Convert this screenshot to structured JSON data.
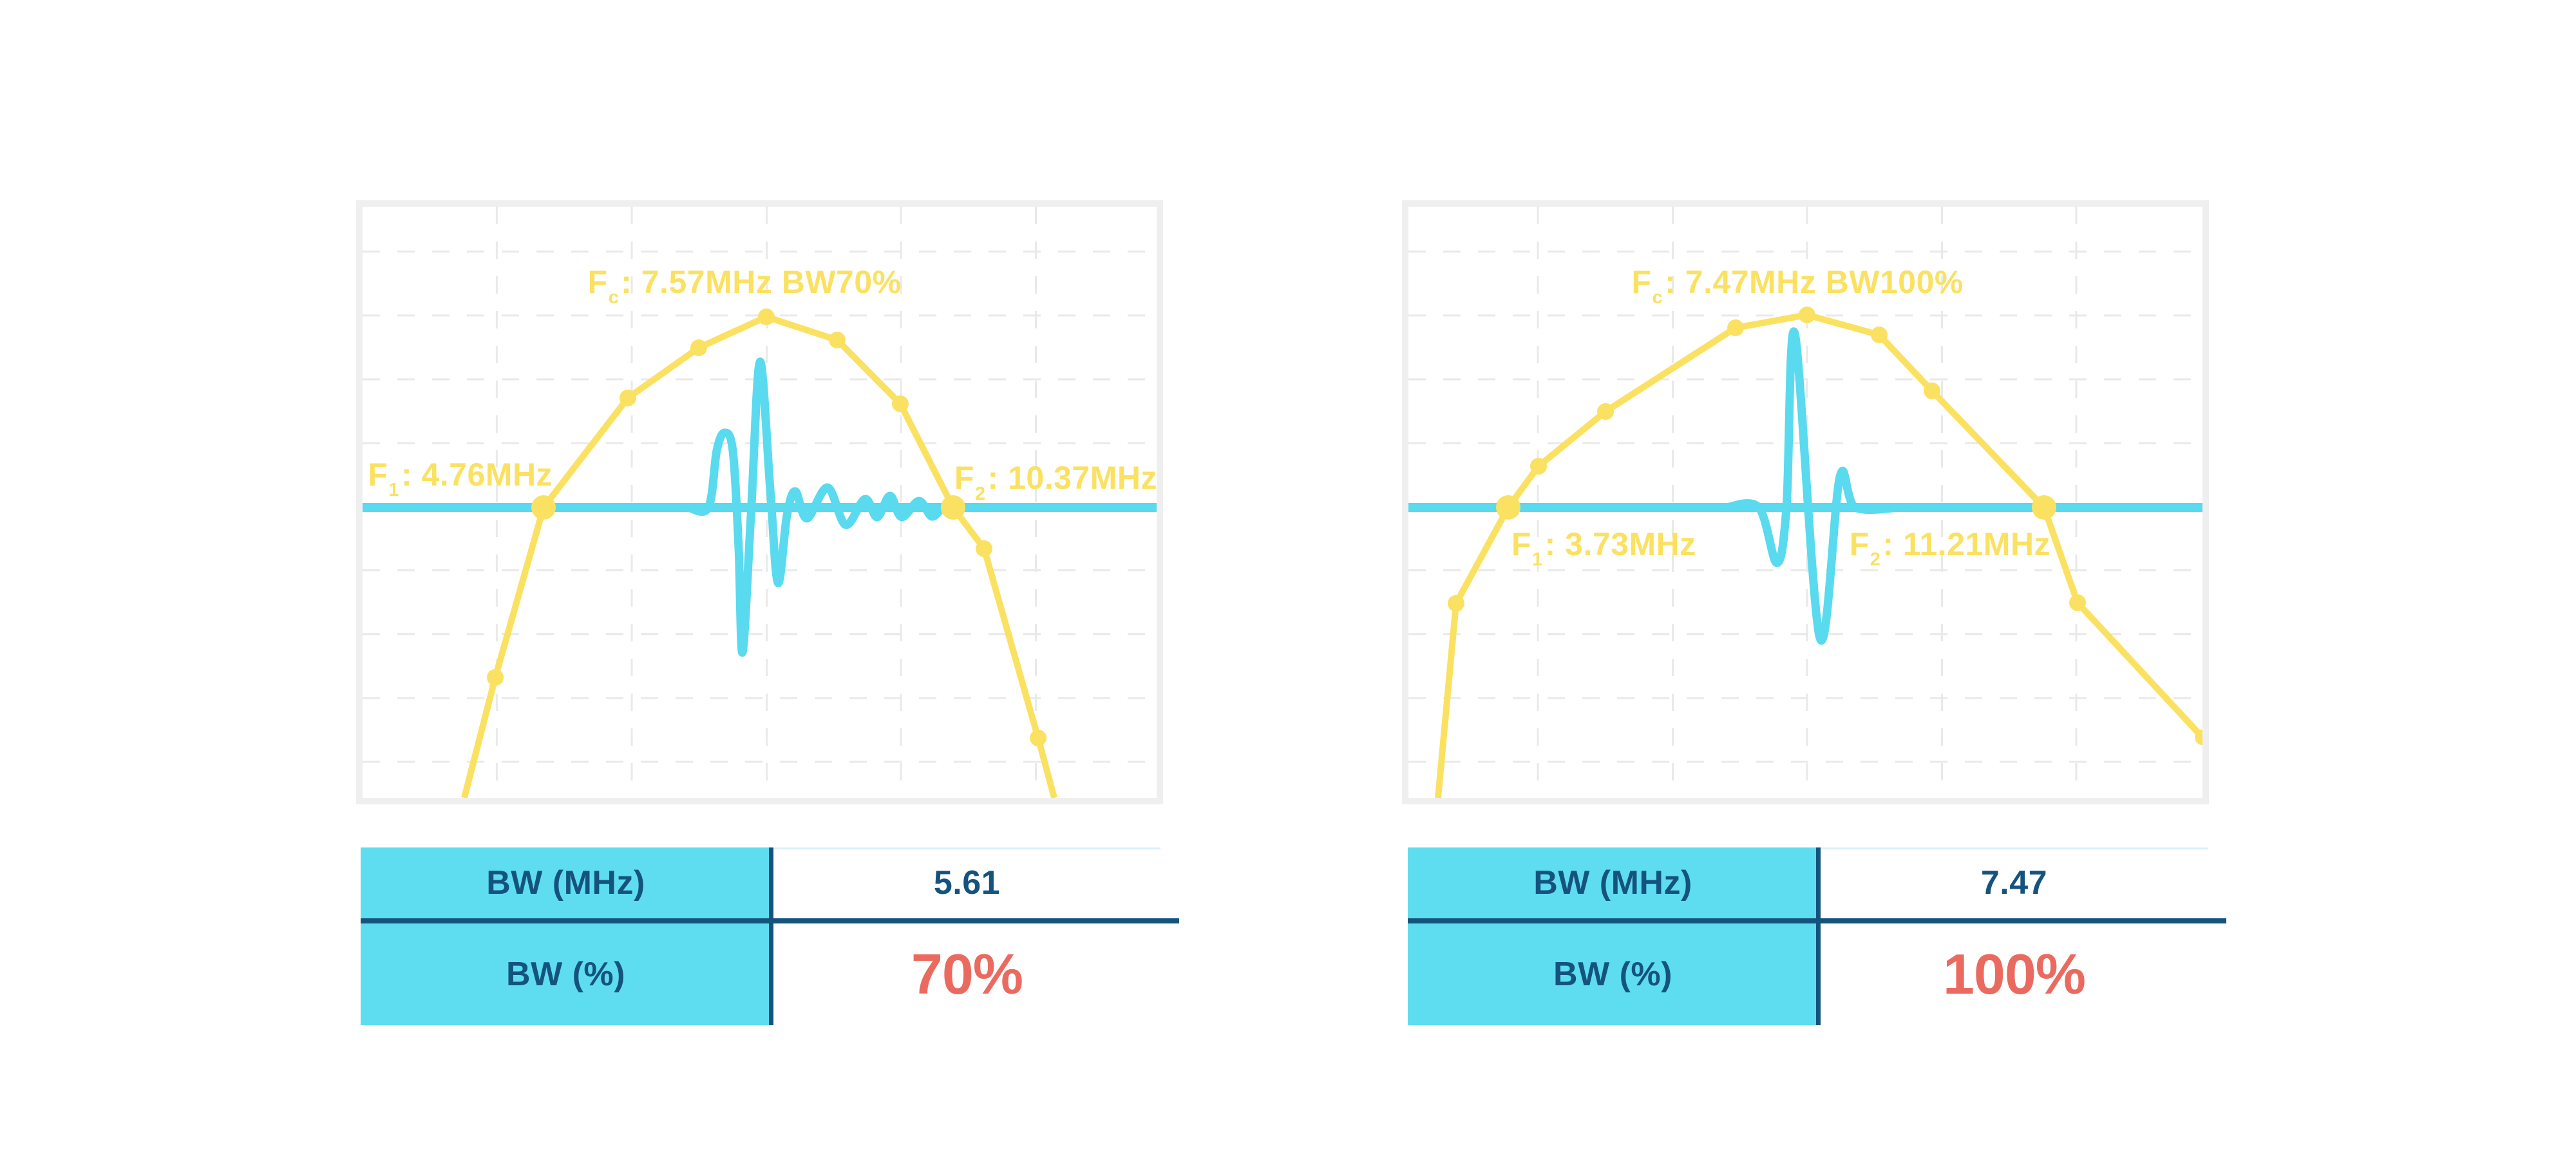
{
  "colors": {
    "yellow": "#FBE161",
    "cyan": "#59DAEE",
    "cyan_fill": "#5FDDF0",
    "navy": "#15537F",
    "red": "#EB6A5F",
    "panel_border": "#EFEFEF",
    "grid": "#E9E9E9",
    "light_border": "#D8F0F7"
  },
  "panels": [
    {
      "title": {
        "pre": "F",
        "sub": "c",
        "post": ": 7.57MHz BW70%"
      },
      "f1": {
        "pre": "F",
        "sub": "1",
        "post": ": 4.76MHz"
      },
      "f2": {
        "pre": "F",
        "sub": "2",
        "post": ": 10.37MHz"
      },
      "table": {
        "rows": [
          {
            "label": "BW (MHz)",
            "value": "5.61"
          },
          {
            "label": "BW (%)",
            "value": "70%"
          }
        ]
      }
    },
    {
      "title": {
        "pre": "F",
        "sub": "c",
        "post": ": 7.47MHz BW100%"
      },
      "f1": {
        "pre": "F",
        "sub": "1",
        "post": ": 3.73MHz"
      },
      "f2": {
        "pre": "F",
        "sub": "2",
        "post": ": 11.21MHz"
      },
      "table": {
        "rows": [
          {
            "label": "BW (MHz)",
            "value": "7.47"
          },
          {
            "label": "BW (%)",
            "value": "100%"
          }
        ]
      }
    }
  ],
  "chart_data": [
    {
      "type": "line",
      "title": "Fc: 7.57MHz BW70%",
      "coords": "normalized to panel, y increases downward",
      "annotations": {
        "fc_mhz": 7.57,
        "bw_percent": 70,
        "f1_mhz": 4.76,
        "f2_mhz": 10.37,
        "bw_mhz": 5.61,
        "title_pos": [
          0.481,
          0.127
        ],
        "f1_pos": [
          0.123,
          0.453
        ],
        "f2_pos": [
          0.873,
          0.459
        ]
      },
      "legend": "none",
      "grid": {
        "x": [
          0.169,
          0.339,
          0.509,
          0.678,
          0.848
        ],
        "y": [
          0.076,
          0.184,
          0.292,
          0.4,
          0.508,
          0.615,
          0.723,
          0.831,
          0.939
        ]
      },
      "baseline_y": 0.5087,
      "marker_legend": {
        "0": "none",
        "1": "sample-dot",
        "2": "crossing-big-dot",
        "3": "end-dot"
      },
      "spectrum_points": [
        [
          0.1281,
          1.0,
          0
        ],
        [
          0.1671,
          0.7963,
          1
        ],
        [
          0.2279,
          0.5087,
          2
        ],
        [
          0.3341,
          0.3235,
          1
        ],
        [
          0.4233,
          0.2386,
          1
        ],
        [
          0.5085,
          0.1863,
          1
        ],
        [
          0.5977,
          0.2255,
          1
        ],
        [
          0.6772,
          0.3333,
          1
        ],
        [
          0.7437,
          0.5087,
          2
        ],
        [
          0.7827,
          0.5784,
          1
        ],
        [
          0.8508,
          0.8987,
          1
        ],
        [
          0.8711,
          1.0,
          0
        ]
      ],
      "pulse_points": [
        [
          0.41,
          0.5087
        ],
        [
          0.4356,
          0.5087
        ],
        [
          0.446,
          0.4128
        ],
        [
          0.4558,
          0.3824
        ],
        [
          0.4663,
          0.4128
        ],
        [
          0.4736,
          0.5763
        ],
        [
          0.4785,
          0.7538
        ],
        [
          0.4891,
          0.5218
        ],
        [
          0.5004,
          0.2625
        ],
        [
          0.5134,
          0.4782
        ],
        [
          0.5231,
          0.6362
        ],
        [
          0.5345,
          0.5218
        ],
        [
          0.545,
          0.4815
        ],
        [
          0.5596,
          0.5272
        ],
        [
          0.5856,
          0.475
        ],
        [
          0.6083,
          0.5381
        ],
        [
          0.6326,
          0.4946
        ],
        [
          0.648,
          0.525
        ],
        [
          0.6642,
          0.4891
        ],
        [
          0.6788,
          0.525
        ],
        [
          0.7007,
          0.4978
        ],
        [
          0.7169,
          0.524
        ],
        [
          0.7315,
          0.5076
        ],
        [
          0.7437,
          0.5087
        ],
        [
          0.78,
          0.5087
        ]
      ]
    },
    {
      "type": "line",
      "title": "Fc: 7.47MHz BW100%",
      "coords": "normalized to panel, y increases downward",
      "annotations": {
        "fc_mhz": 7.47,
        "bw_percent": 100,
        "f1_mhz": 3.73,
        "f2_mhz": 11.21,
        "bw_mhz": 7.47,
        "title_pos": [
          0.49,
          0.127
        ],
        "f1_pos": [
          0.246,
          0.571
        ],
        "f2_pos": [
          0.682,
          0.571
        ]
      },
      "legend": "none",
      "grid": {
        "x": [
          0.163,
          0.333,
          0.502,
          0.672,
          0.841
        ],
        "y": [
          0.076,
          0.184,
          0.292,
          0.4,
          0.508,
          0.615,
          0.723,
          0.831,
          0.939
        ]
      },
      "baseline_y": 0.5087,
      "marker_legend": {
        "0": "none",
        "1": "sample-dot",
        "2": "crossing-big-dot",
        "3": "end-dot"
      },
      "spectrum_points": [
        [
          0.0373,
          1.0,
          0
        ],
        [
          0.06,
          0.671,
          1
        ],
        [
          0.1257,
          0.5087,
          2
        ],
        [
          0.1638,
          0.439,
          1
        ],
        [
          0.2482,
          0.3464,
          1
        ],
        [
          0.412,
          0.2048,
          1
        ],
        [
          0.502,
          0.183,
          1
        ],
        [
          0.5929,
          0.2168,
          1
        ],
        [
          0.6594,
          0.3115,
          1
        ],
        [
          0.8005,
          0.5087,
          2
        ],
        [
          0.8427,
          0.6699,
          1
        ],
        [
          1.0,
          0.8976,
          3
        ]
      ],
      "pulse_points": [
        [
          0.4,
          0.5087
        ],
        [
          0.4412,
          0.5087
        ],
        [
          0.4639,
          0.6024
        ],
        [
          0.4761,
          0.5087
        ],
        [
          0.4866,
          0.2146
        ],
        [
          0.5182,
          0.7298
        ],
        [
          0.5434,
          0.4564
        ],
        [
          0.5629,
          0.5087
        ],
        [
          0.62,
          0.5087
        ]
      ]
    }
  ]
}
